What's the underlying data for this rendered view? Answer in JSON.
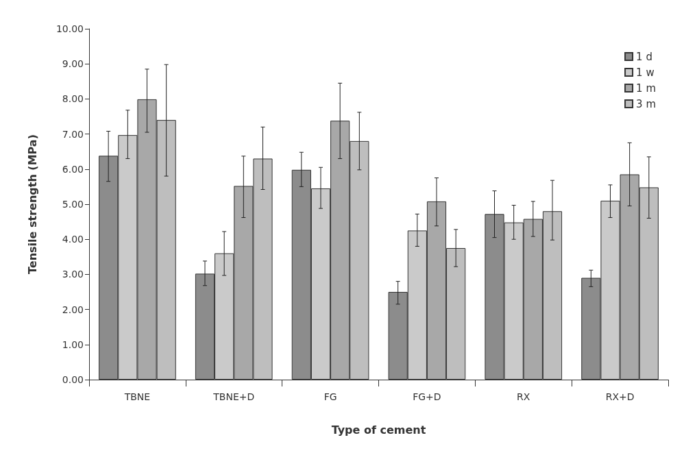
{
  "chart_data": {
    "type": "bar",
    "xlabel": "Type of cement",
    "ylabel": "Tensile strength (MPa)",
    "categories": [
      "TBNE",
      "TBNE+D",
      "FG",
      "FG+D",
      "RX",
      "RX+D"
    ],
    "series": [
      {
        "name": "1 d",
        "color": "#8c8c8c",
        "values": [
          6.38,
          3.02,
          5.98,
          2.5,
          4.72,
          2.9
        ],
        "errors": [
          [
            5.65,
            7.08
          ],
          [
            2.68,
            3.38
          ],
          [
            5.5,
            6.48
          ],
          [
            2.15,
            2.8
          ],
          [
            4.05,
            5.38
          ],
          [
            2.65,
            3.12
          ]
        ]
      },
      {
        "name": "1 w",
        "color": "#cacaca",
        "values": [
          6.97,
          3.6,
          5.45,
          4.25,
          4.48,
          5.1
        ],
        "errors": [
          [
            6.3,
            7.68
          ],
          [
            2.97,
            4.22
          ],
          [
            4.88,
            6.05
          ],
          [
            3.8,
            4.72
          ],
          [
            4.0,
            4.97
          ],
          [
            4.62,
            5.55
          ]
        ]
      },
      {
        "name": "1 m",
        "color": "#a8a8a8",
        "values": [
          7.99,
          5.52,
          7.38,
          5.08,
          4.58,
          5.85
        ],
        "errors": [
          [
            7.05,
            8.85
          ],
          [
            4.62,
            6.37
          ],
          [
            6.3,
            8.45
          ],
          [
            4.38,
            5.75
          ],
          [
            4.08,
            5.08
          ],
          [
            4.95,
            6.75
          ]
        ]
      },
      {
        "name": "3 m",
        "color": "#bebebe",
        "values": [
          7.4,
          6.3,
          6.8,
          3.75,
          4.8,
          5.48
        ],
        "errors": [
          [
            5.8,
            8.98
          ],
          [
            5.42,
            7.2
          ],
          [
            5.98,
            7.62
          ],
          [
            3.22,
            4.28
          ],
          [
            3.98,
            5.68
          ],
          [
            4.6,
            6.35
          ]
        ]
      }
    ],
    "ylim": [
      0,
      10
    ],
    "yticks": [
      {
        "value": 0,
        "label": "0.00"
      },
      {
        "value": 1,
        "label": "1.00"
      },
      {
        "value": 2,
        "label": "2.00"
      },
      {
        "value": 3,
        "label": "3.00"
      },
      {
        "value": 4,
        "label": "4.00"
      },
      {
        "value": 5,
        "label": "5.00"
      },
      {
        "value": 6,
        "label": "6.00"
      },
      {
        "value": 7,
        "label": "7.00"
      },
      {
        "value": 8,
        "label": "8.00"
      },
      {
        "value": 9,
        "label": "9.00"
      },
      {
        "value": 10,
        "label": "10.00"
      }
    ],
    "grid": false,
    "legend": "top right"
  }
}
